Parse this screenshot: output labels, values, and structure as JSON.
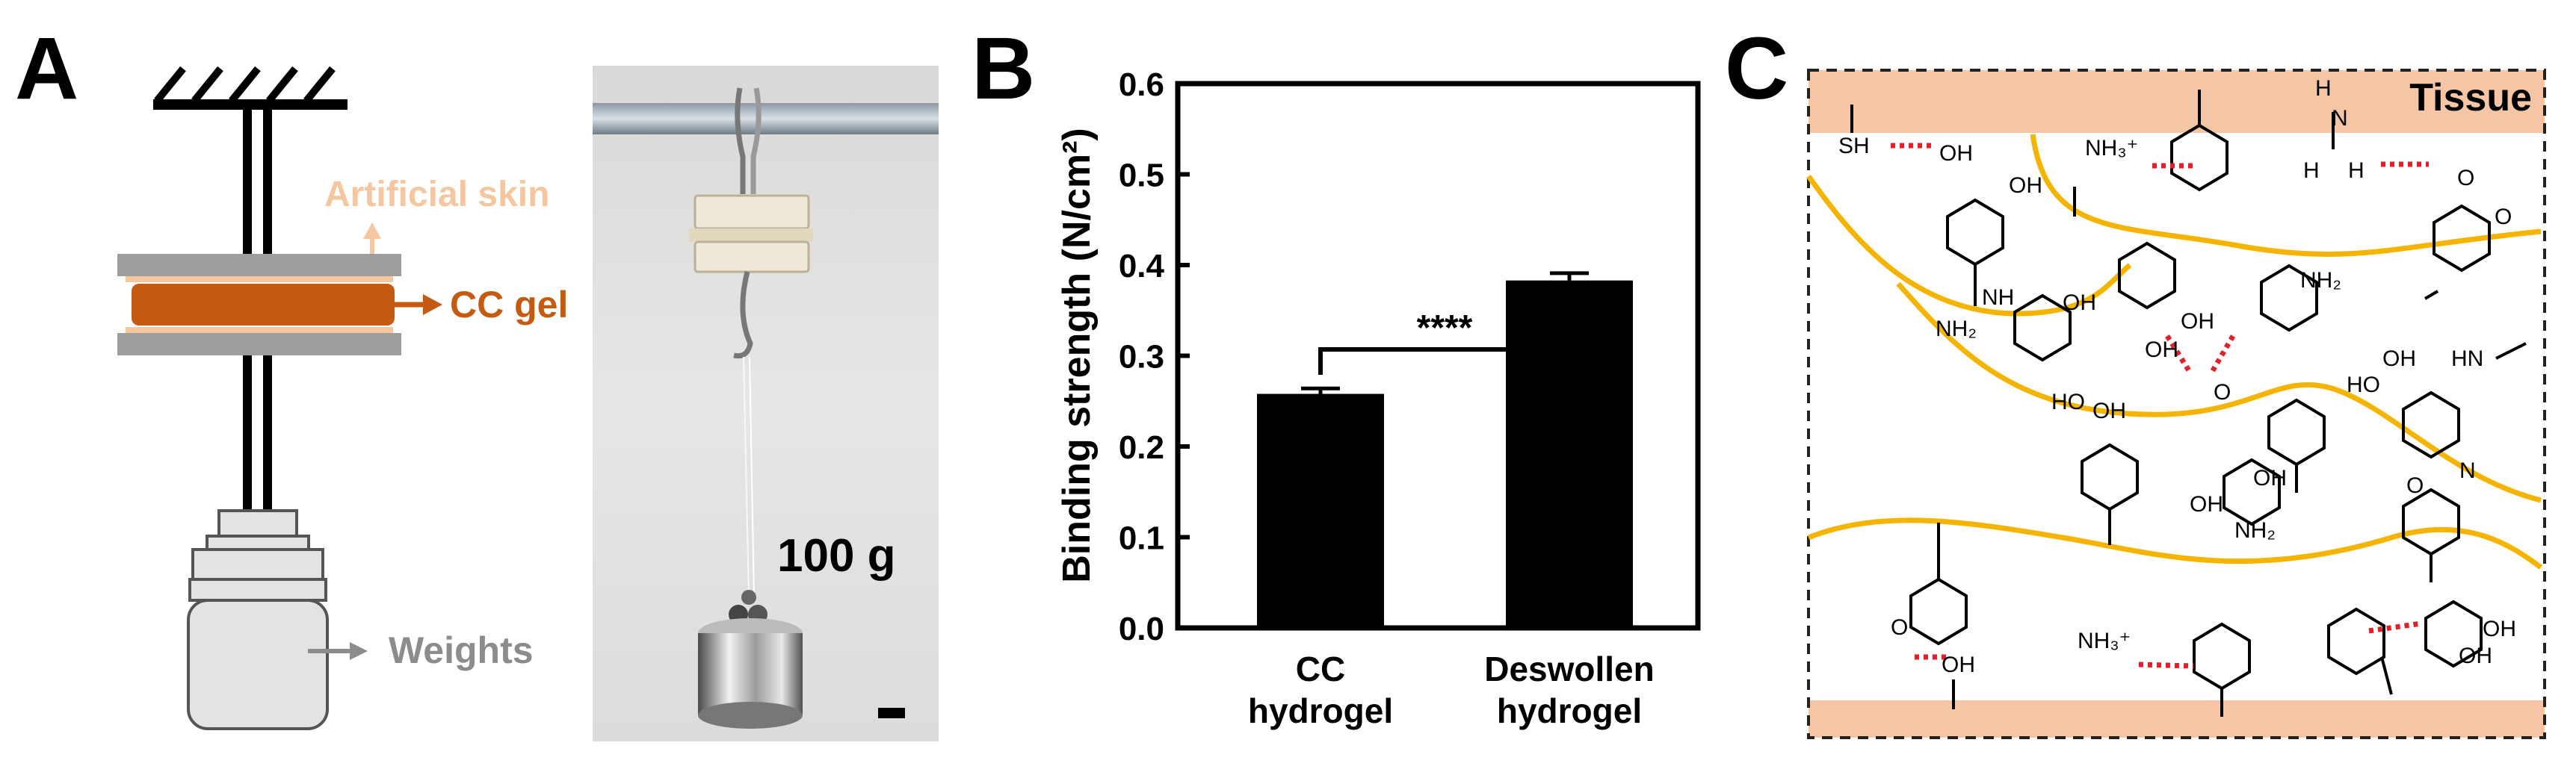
{
  "panel_a": {
    "letter": "A",
    "artificial_skin": "Artificial skin",
    "cc_gel": "CC gel",
    "weights": "Weights",
    "mass_label": "100 g",
    "colors": {
      "skin": "#f5c7a0",
      "gel": "#c55a11",
      "weights_label": "#8c8c8c"
    }
  },
  "panel_b": {
    "letter": "B",
    "significance": "****"
  },
  "panel_c": {
    "letter": "C",
    "tissue": "Tissue",
    "colors": {
      "tissue": "#f4c6a6",
      "chain": "#f4b400",
      "hbond": "#e0202a"
    }
  },
  "chart_data": {
    "type": "bar",
    "categories": [
      [
        "CC",
        "hydrogel"
      ],
      [
        "Deswollen",
        "hydrogel"
      ]
    ],
    "values": [
      0.258,
      0.383
    ],
    "errors": [
      0.006,
      0.008
    ],
    "ylabel": "Binding strength (N/cm²)",
    "ylim": [
      0.0,
      0.6
    ],
    "yticks": [
      "0.0",
      "0.1",
      "0.2",
      "0.3",
      "0.4",
      "0.5",
      "0.6"
    ],
    "bar_color": "#000000"
  }
}
